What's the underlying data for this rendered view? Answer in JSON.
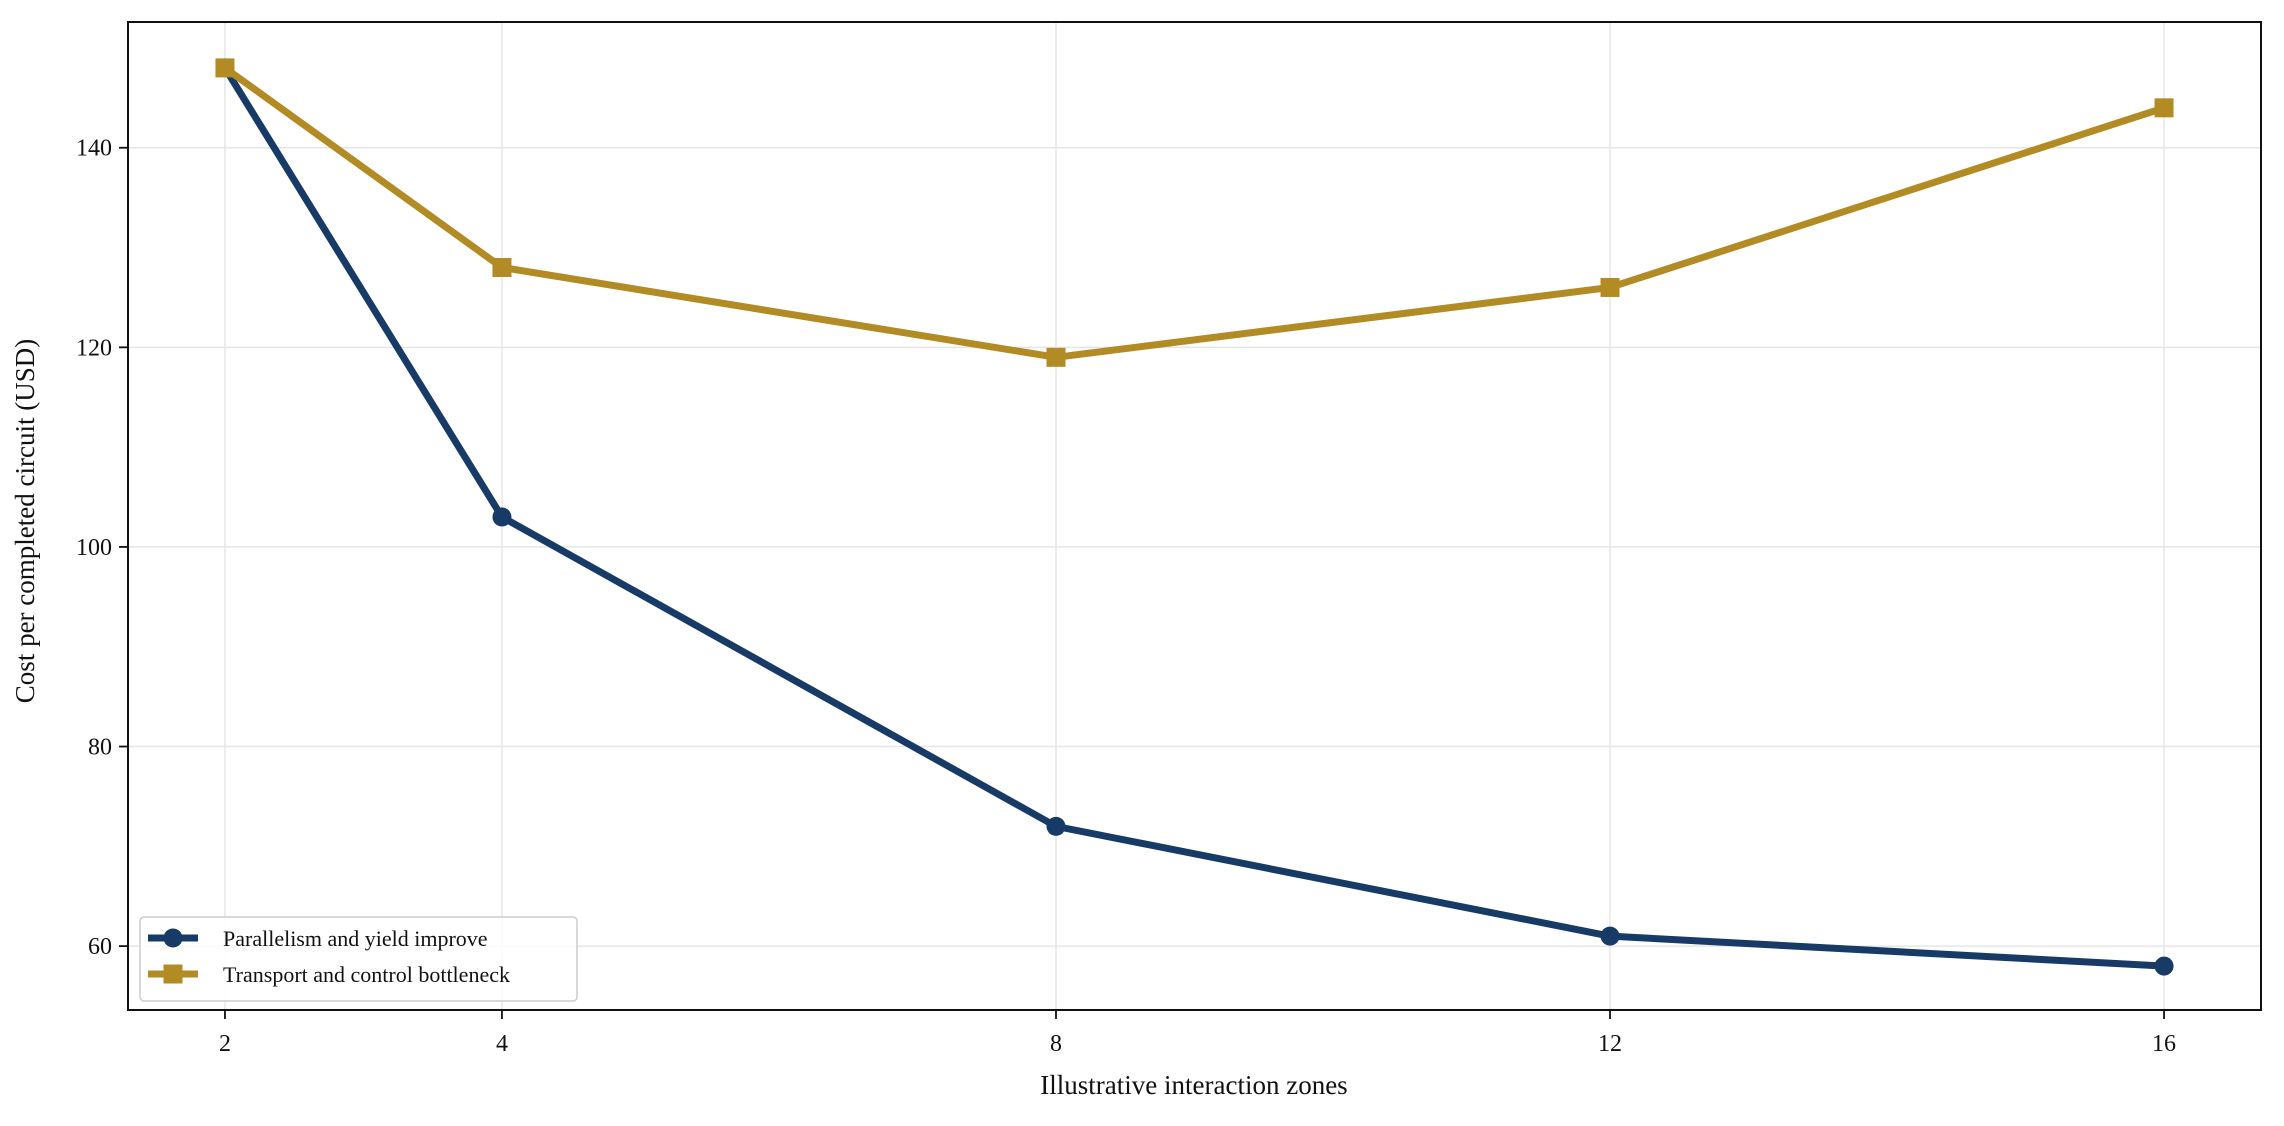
{
  "chart_data": {
    "type": "line",
    "title": "",
    "xlabel": "Illustrative interaction zones",
    "ylabel": "Cost per completed circuit (USD)",
    "x": [
      2,
      4,
      8,
      12,
      16
    ],
    "xticks": [
      2,
      4,
      8,
      12,
      16
    ],
    "xtick_labels": [
      "2",
      "4",
      "8",
      "12",
      "16"
    ],
    "xlim": [
      1.3,
      16.7
    ],
    "yticks": [
      60,
      80,
      100,
      120,
      140
    ],
    "ytick_labels": [
      "60",
      "80",
      "100",
      "120",
      "140"
    ],
    "ylim": [
      53.6,
      152.6
    ],
    "grid": true,
    "legend_position": "lower-left",
    "series": [
      {
        "name": "Parallelism and yield improve",
        "values": [
          148,
          103,
          72,
          61,
          58
        ],
        "color": "#173a66",
        "marker": "circle"
      },
      {
        "name": "Transport and control bottleneck",
        "values": [
          148,
          128,
          119,
          126,
          144
        ],
        "color": "#b38b25",
        "marker": "square"
      }
    ]
  }
}
